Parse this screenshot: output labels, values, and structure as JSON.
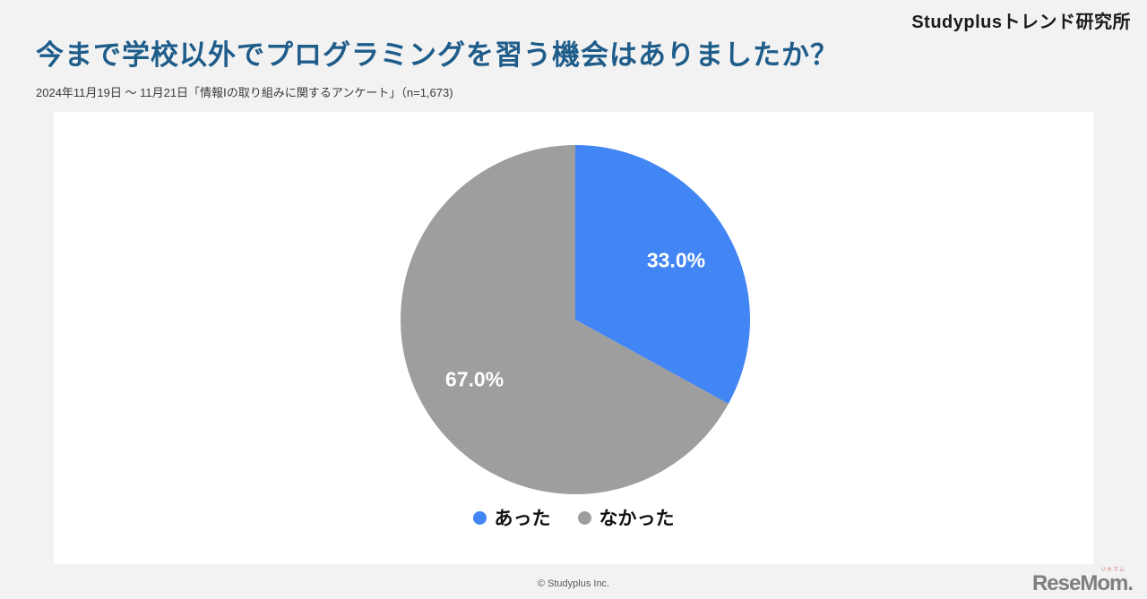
{
  "header": {
    "brand": "Studyplusトレンド研究所"
  },
  "title": "今まで学校以外でプログラミングを習う機会はありましたか？",
  "subtitle": "2024年11月19日 〜 11月21日「情報Ⅰの取り組みに関するアンケート」（n=1,673)",
  "chart_data": {
    "type": "pie",
    "labels": [
      "あった",
      "なかった"
    ],
    "values": [
      33.0,
      67.0
    ],
    "value_labels": [
      "33.0%",
      "67.0%"
    ],
    "colors": [
      "#4285f4",
      "#9e9e9e"
    ],
    "start_angle_deg": 0,
    "direction": "clockwise",
    "label_color": "#ffffff",
    "legend_position": "bottom"
  },
  "footer": {
    "copyright": "© Studyplus Inc.",
    "logo_text": "ReseMom.",
    "logo_ruby": "リセマム"
  }
}
